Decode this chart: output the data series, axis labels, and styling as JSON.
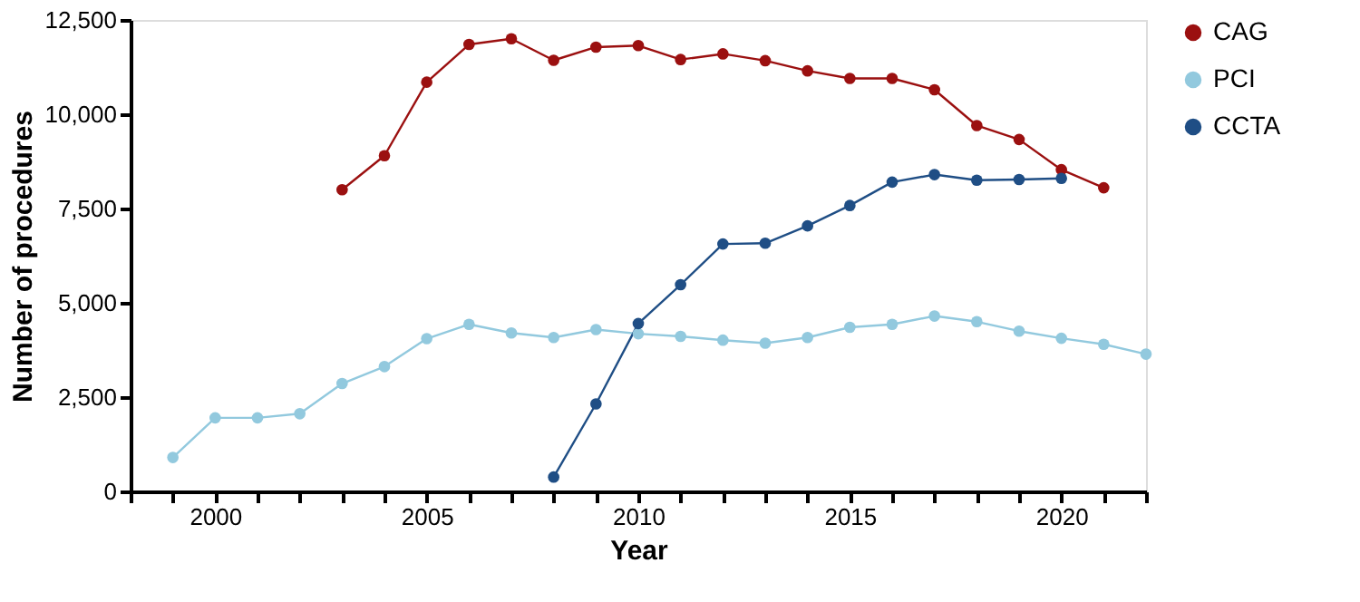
{
  "chart_data": {
    "type": "line",
    "xlabel": "Year",
    "ylabel": "Number of procedures",
    "xlim": [
      1998,
      2022
    ],
    "ylim": [
      0,
      12500
    ],
    "xticks": [
      {
        "value": 1998,
        "label": null
      },
      {
        "value": 1999,
        "label": null
      },
      2000,
      {
        "value": 2001,
        "label": null
      },
      {
        "value": 2002,
        "label": null
      },
      {
        "value": 2003,
        "label": null
      },
      {
        "value": 2004,
        "label": null
      },
      2005,
      {
        "value": 2006,
        "label": null
      },
      {
        "value": 2007,
        "label": null
      },
      {
        "value": 2008,
        "label": null
      },
      {
        "value": 2009,
        "label": null
      },
      2010,
      {
        "value": 2011,
        "label": null
      },
      {
        "value": 2012,
        "label": null
      },
      {
        "value": 2013,
        "label": null
      },
      {
        "value": 2014,
        "label": null
      },
      2015,
      {
        "value": 2016,
        "label": null
      },
      {
        "value": 2017,
        "label": null
      },
      {
        "value": 2018,
        "label": null
      },
      {
        "value": 2019,
        "label": null
      },
      2020,
      {
        "value": 2021,
        "label": null
      },
      {
        "value": 2022,
        "label": null
      }
    ],
    "yticks": [
      0,
      {
        "value": 2500,
        "label": "2,500"
      },
      {
        "value": 5000,
        "label": "5,000"
      },
      {
        "value": 7500,
        "label": "7,500"
      },
      {
        "value": 10000,
        "label": "10,000"
      },
      {
        "value": 12500,
        "label": "12,500"
      }
    ],
    "grid": false,
    "legend": "right",
    "marker": "circle",
    "line_style": "solid",
    "series": [
      {
        "name": "CAG",
        "color": "#9b1010",
        "x": [
          2003,
          2004,
          2005,
          2006,
          2007,
          2008,
          2009,
          2010,
          2011,
          2012,
          2013,
          2014,
          2015,
          2016,
          2017,
          2018,
          2019,
          2020,
          2021
        ],
        "values": [
          8000,
          8900,
          10850,
          11850,
          12000,
          11430,
          11780,
          11820,
          11450,
          11600,
          11420,
          11150,
          10950,
          10950,
          10650,
          9700,
          9330,
          8530,
          8050
        ]
      },
      {
        "name": "PCI",
        "color": "#92c9de",
        "x": [
          1999,
          2000,
          2001,
          2002,
          2003,
          2004,
          2005,
          2006,
          2007,
          2008,
          2009,
          2010,
          2011,
          2012,
          2013,
          2014,
          2015,
          2016,
          2017,
          2018,
          2019,
          2020,
          2021,
          2022
        ],
        "values": [
          900,
          1950,
          1950,
          2060,
          2860,
          3310,
          4050,
          4430,
          4200,
          4080,
          4290,
          4180,
          4110,
          4010,
          3930,
          4080,
          4350,
          4430,
          4650,
          4500,
          4250,
          4060,
          3900,
          3640
        ]
      },
      {
        "name": "CCTA",
        "color": "#1f4e85",
        "x": [
          2008,
          2009,
          2010,
          2011,
          2012,
          2013,
          2014,
          2015,
          2016,
          2017,
          2018,
          2019,
          2020
        ],
        "values": [
          380,
          2320,
          4450,
          5480,
          6560,
          6580,
          7040,
          7580,
          8200,
          8400,
          8250,
          8270,
          8300
        ]
      }
    ]
  }
}
